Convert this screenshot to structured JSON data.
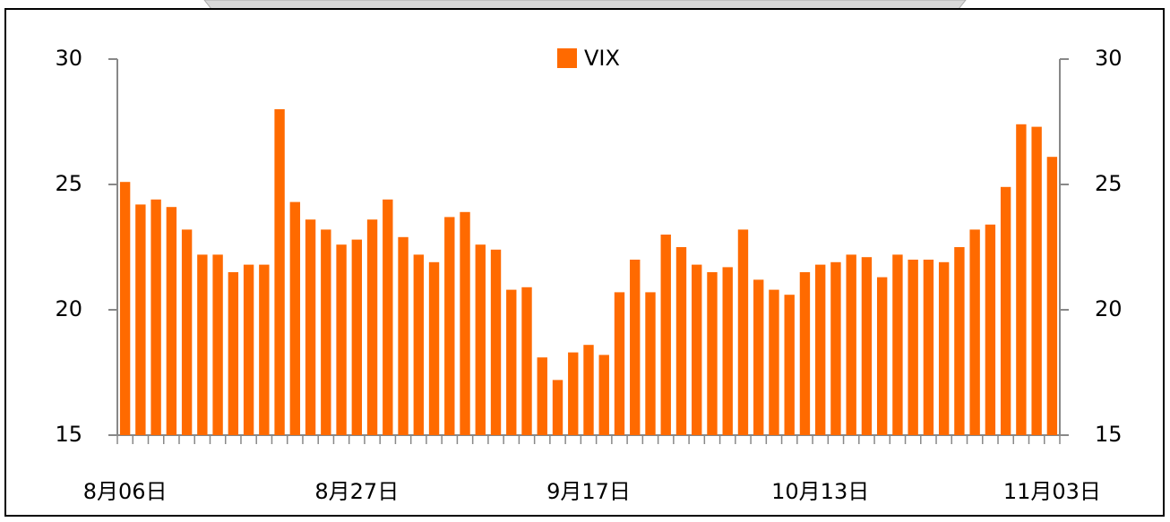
{
  "chart_data": {
    "type": "bar",
    "legend": "VIX",
    "color": "#ff6a00",
    "categories": [
      "8月06日",
      null,
      null,
      null,
      null,
      null,
      null,
      null,
      null,
      null,
      null,
      null,
      null,
      null,
      null,
      "8月27日",
      null,
      null,
      null,
      null,
      null,
      null,
      null,
      null,
      null,
      null,
      null,
      null,
      null,
      null,
      "9月17日",
      null,
      null,
      null,
      null,
      null,
      null,
      null,
      null,
      null,
      null,
      null,
      null,
      null,
      null,
      "10月13日",
      null,
      null,
      null,
      null,
      null,
      null,
      null,
      null,
      null,
      null,
      null,
      null,
      null,
      null,
      "11月03日"
    ],
    "values": [
      25.1,
      24.2,
      24.4,
      24.1,
      23.2,
      22.2,
      22.2,
      21.5,
      21.8,
      21.8,
      28.0,
      24.3,
      23.6,
      23.2,
      22.6,
      22.8,
      23.6,
      24.4,
      22.9,
      22.2,
      21.9,
      23.7,
      23.9,
      22.6,
      22.4,
      20.8,
      20.9,
      18.1,
      17.2,
      18.3,
      18.6,
      18.2,
      20.7,
      22.0,
      20.7,
      23.0,
      22.5,
      21.8,
      21.5,
      21.7,
      23.2,
      21.2,
      20.8,
      20.6,
      21.5,
      21.8,
      21.9,
      22.2,
      22.1,
      21.3,
      22.2,
      22.0,
      22.0,
      21.9,
      22.5,
      23.2,
      23.4,
      24.9,
      27.4,
      27.3,
      26.1
    ],
    "ylim": [
      15,
      30
    ],
    "yticks": [
      15,
      20,
      25,
      30
    ],
    "y2lim": [
      15,
      30
    ],
    "y2ticks": [
      15,
      20,
      25,
      30
    ]
  }
}
